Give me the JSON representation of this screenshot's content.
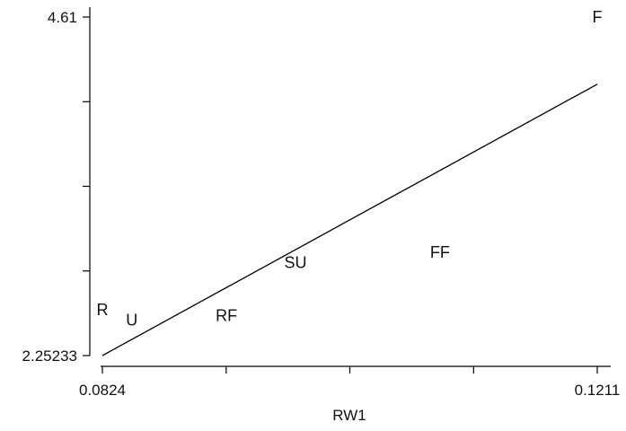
{
  "chart_data": {
    "type": "scatter",
    "title": "",
    "xlabel": "RW1",
    "ylabel": "",
    "xlim": [
      0.0824,
      0.1211
    ],
    "ylim": [
      2.25233,
      4.61
    ],
    "x_tick_labels": [
      {
        "value": 0.0824,
        "label": "0.0824"
      },
      {
        "value": 0.1211,
        "label": "0.1211"
      }
    ],
    "x_ticks_unlabeled": [
      0.09208,
      0.10175,
      0.11143
    ],
    "y_tick_labels": [
      {
        "value": 2.25233,
        "label": "2.25233"
      },
      {
        "value": 4.61,
        "label": "4.61"
      }
    ],
    "y_ticks_unlabeled": [
      2.8417,
      3.4311,
      4.0206
    ],
    "points": [
      {
        "label": "F",
        "x": 0.1211,
        "y": 4.61
      },
      {
        "label": "FF",
        "x": 0.1088,
        "y": 2.97
      },
      {
        "label": "SU",
        "x": 0.0975,
        "y": 2.9
      },
      {
        "label": "RF",
        "x": 0.0921,
        "y": 2.53
      },
      {
        "label": "U",
        "x": 0.0847,
        "y": 2.5
      },
      {
        "label": "R",
        "x": 0.0824,
        "y": 2.57
      }
    ],
    "fit_line": {
      "x": [
        0.0824,
        0.1211
      ],
      "y": [
        2.25233,
        4.1424
      ]
    },
    "grid": false,
    "legend": "none"
  }
}
